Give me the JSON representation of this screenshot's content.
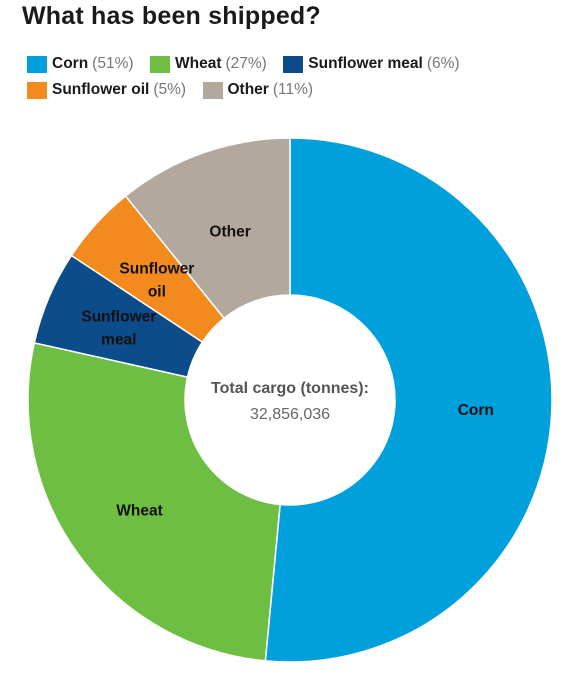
{
  "chart_data": {
    "type": "pie",
    "title": "What has been shipped?",
    "center_label": "Total cargo (tonnes):",
    "center_value": "32,856,036",
    "legend_placement": "top",
    "slices": [
      {
        "name": "Corn",
        "percent_label": "(51%)",
        "value": 51.5,
        "color": "#00a0dc",
        "label_lines": [
          "Corn"
        ]
      },
      {
        "name": "Wheat",
        "percent_label": "(27%)",
        "value": 27.0,
        "color": "#6fbe44",
        "label_lines": [
          "Wheat"
        ]
      },
      {
        "name": "Sunflower meal",
        "percent_label": "(6%)",
        "value": 5.8,
        "color": "#0c4c8a",
        "label_lines": [
          "Sunflower",
          "meal"
        ]
      },
      {
        "name": "Sunflower oil",
        "percent_label": "(5%)",
        "value": 4.9,
        "color": "#f28a1e",
        "label_lines": [
          "Sunflower",
          "oil"
        ]
      },
      {
        "name": "Other",
        "percent_label": "(11%)",
        "value": 10.8,
        "color": "#b3a89d",
        "label_lines": [
          "Other"
        ]
      }
    ]
  }
}
